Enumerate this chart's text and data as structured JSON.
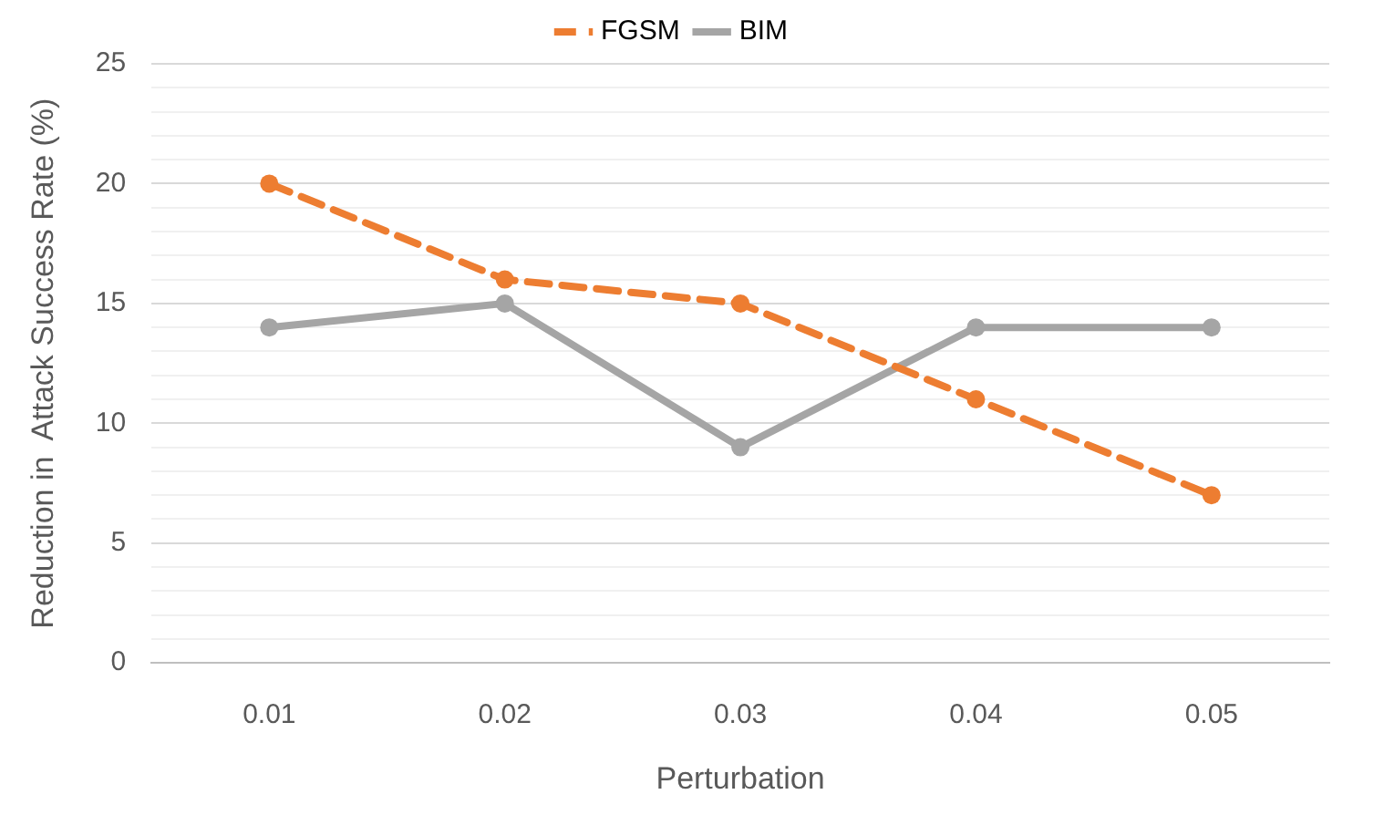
{
  "chart_data": {
    "type": "line",
    "xlabel": "Perturbation",
    "ylabel": "Reduction in  Attack Success Rate (%)",
    "categories": [
      "0.01",
      "0.02",
      "0.03",
      "0.04",
      "0.05"
    ],
    "series": [
      {
        "name": "FGSM",
        "color": "#ed7d31",
        "values": [
          20,
          16,
          15,
          11,
          7
        ],
        "line_style": "dashed"
      },
      {
        "name": "BIM",
        "color": "#a5a5a5",
        "values": [
          14,
          15,
          9,
          14,
          14
        ],
        "line_style": "solid"
      }
    ],
    "ylim": [
      0,
      25
    ],
    "yticks": [
      0,
      {
        "value": 1,
        "label": null
      },
      {
        "value": 2,
        "label": null
      },
      {
        "value": 3,
        "label": null
      },
      {
        "value": 4,
        "label": null
      },
      5,
      {
        "value": 6,
        "label": null
      },
      {
        "value": 7,
        "label": null
      },
      {
        "value": 8,
        "label": null
      },
      {
        "value": 9,
        "label": null
      },
      10,
      {
        "value": 11,
        "label": null
      },
      {
        "value": 12,
        "label": null
      },
      {
        "value": 13,
        "label": null
      },
      {
        "value": 14,
        "label": null
      },
      15,
      {
        "value": 16,
        "label": null
      },
      {
        "value": 17,
        "label": null
      },
      {
        "value": 18,
        "label": null
      },
      {
        "value": 19,
        "label": null
      },
      20,
      {
        "value": 21,
        "label": null
      },
      {
        "value": 22,
        "label": null
      },
      {
        "value": 23,
        "label": null
      },
      {
        "value": 24,
        "label": null
      },
      25
    ],
    "grid": "y",
    "legend": "top",
    "marker": "circle"
  }
}
